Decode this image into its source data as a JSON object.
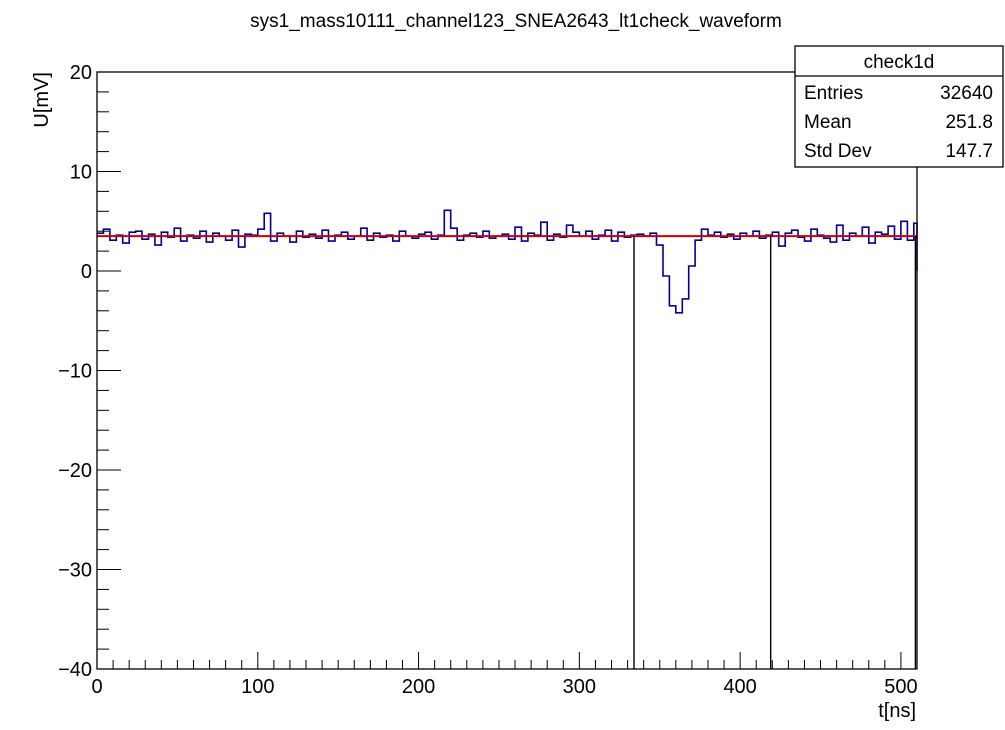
{
  "chart_data": {
    "type": "line",
    "title": "sys1_mass10111_channel123_SNEA2643_lt1check_waveform",
    "xlabel": "t[ns]",
    "ylabel": "U[mV]",
    "xlim": [
      0,
      510
    ],
    "ylim": [
      -40,
      20
    ],
    "x_ticks": [
      "0",
      "100",
      "200",
      "300",
      "400",
      "500"
    ],
    "y_ticks": [
      "20",
      "10",
      "0",
      "−10",
      "−20",
      "−30",
      "−40"
    ],
    "grid": false,
    "baseline": {
      "value": 3.5,
      "color": "#cc0000"
    },
    "vertical_lines": [
      334,
      419,
      509
    ],
    "series": [
      {
        "color": "#000099",
        "x": [
          0,
          4,
          8,
          12,
          16,
          20,
          24,
          28,
          32,
          36,
          40,
          44,
          48,
          52,
          56,
          60,
          64,
          68,
          72,
          76,
          80,
          84,
          88,
          92,
          96,
          100,
          104,
          108,
          112,
          116,
          120,
          124,
          128,
          132,
          136,
          140,
          144,
          148,
          152,
          156,
          160,
          164,
          168,
          172,
          176,
          180,
          184,
          188,
          192,
          196,
          200,
          204,
          208,
          212,
          216,
          220,
          224,
          228,
          232,
          236,
          240,
          244,
          248,
          252,
          256,
          260,
          264,
          268,
          272,
          276,
          280,
          284,
          288,
          292,
          296,
          300,
          304,
          308,
          312,
          316,
          320,
          324,
          328,
          332,
          336,
          340,
          344,
          348,
          352,
          356,
          360,
          364,
          368,
          372,
          376,
          380,
          384,
          388,
          392,
          396,
          400,
          404,
          408,
          412,
          416,
          420,
          424,
          428,
          432,
          436,
          440,
          444,
          448,
          452,
          456,
          460,
          464,
          468,
          472,
          476,
          480,
          484,
          488,
          492,
          496,
          500,
          504,
          508,
          510
        ],
        "values": [
          3.8,
          4.2,
          3.1,
          3.6,
          2.8,
          3.9,
          4.0,
          3.2,
          3.7,
          2.6,
          3.9,
          3.4,
          4.3,
          3.0,
          3.6,
          3.3,
          4.0,
          2.9,
          3.8,
          3.5,
          3.1,
          4.1,
          2.4,
          3.7,
          3.6,
          4.2,
          5.8,
          3.0,
          3.8,
          3.5,
          2.9,
          4.0,
          3.4,
          3.7,
          3.3,
          4.1,
          3.0,
          3.6,
          3.9,
          3.2,
          3.5,
          4.3,
          3.1,
          3.8,
          3.4,
          3.6,
          3.0,
          4.0,
          3.5,
          3.3,
          3.7,
          3.9,
          3.2,
          3.6,
          6.1,
          4.3,
          3.1,
          3.6,
          3.8,
          3.4,
          4.0,
          3.3,
          3.5,
          3.7,
          3.2,
          4.4,
          3.0,
          3.8,
          3.6,
          4.9,
          3.1,
          3.7,
          3.4,
          4.6,
          3.9,
          3.5,
          4.0,
          3.2,
          3.6,
          4.1,
          3.0,
          3.9,
          3.4,
          3.6,
          3.7,
          3.5,
          3.8,
          2.6,
          -0.5,
          -3.5,
          -4.2,
          -2.8,
          0.5,
          3.1,
          4.2,
          3.6,
          3.9,
          3.4,
          3.7,
          3.2,
          3.8,
          3.5,
          4.0,
          3.3,
          3.6,
          3.9,
          2.5,
          3.8,
          4.1,
          3.4,
          3.0,
          4.2,
          3.6,
          3.3,
          2.9,
          4.6,
          3.1,
          3.8,
          3.5,
          4.4,
          2.8,
          3.9,
          3.7,
          4.5,
          3.2,
          5.0,
          3.1,
          4.8,
          0.0
        ]
      }
    ],
    "legend": "none"
  },
  "stats_box": {
    "name": "check1d",
    "rows": [
      {
        "label": "Entries",
        "value": "32640"
      },
      {
        "label": "Mean",
        "value": "251.8"
      },
      {
        "label": "Std Dev",
        "value": "147.7"
      }
    ]
  }
}
